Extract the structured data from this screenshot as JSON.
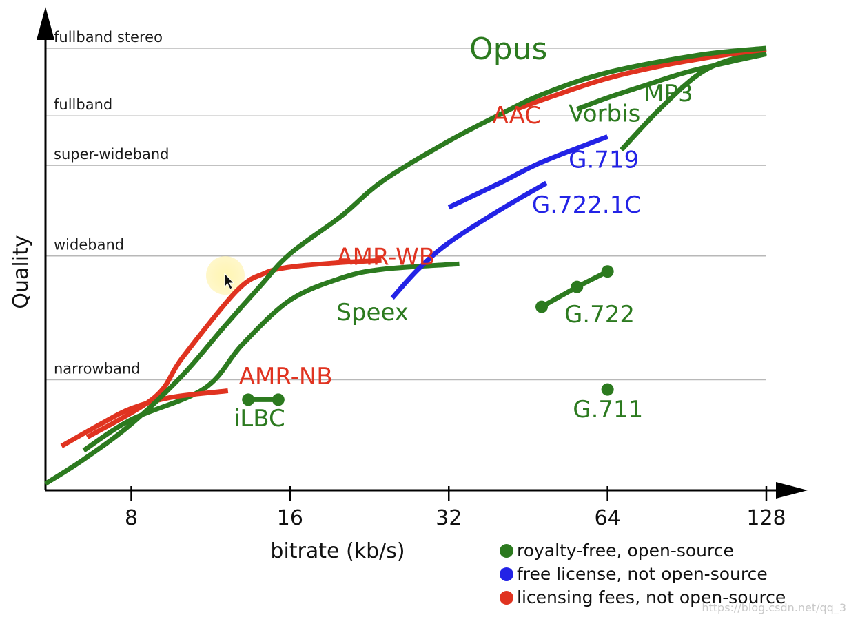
{
  "chart_data": {
    "type": "line",
    "xlabel": "bitrate (kb/s)",
    "ylabel": "Quality",
    "x_scale": "log2",
    "xlim": [
      5.5,
      128
    ],
    "x_ticks": [
      8,
      16,
      32,
      64,
      128
    ],
    "ylim": [
      0,
      1
    ],
    "quality_levels": [
      {
        "label": "narrowband",
        "y": 0.25
      },
      {
        "label": "wideband",
        "y": 0.53
      },
      {
        "label": "super-wideband",
        "y": 0.735
      },
      {
        "label": "fullband",
        "y": 0.847
      },
      {
        "label": "fullband stereo",
        "y": 1.0
      }
    ],
    "colors": {
      "royalty_free": "#2c7a1f",
      "free_license": "#2323e6",
      "licensing_fees": "#e03320"
    },
    "series": [
      {
        "name": "Opus",
        "license": "royalty_free",
        "points": [
          [
            5.5,
            0.015
          ],
          [
            6.5,
            0.07
          ],
          [
            8,
            0.15
          ],
          [
            10,
            0.26
          ],
          [
            12,
            0.37
          ],
          [
            14,
            0.46
          ],
          [
            16,
            0.535
          ],
          [
            20,
            0.62
          ],
          [
            24,
            0.7
          ],
          [
            32,
            0.79
          ],
          [
            40,
            0.85
          ],
          [
            48,
            0.895
          ],
          [
            64,
            0.945
          ],
          [
            96,
            0.985
          ],
          [
            128,
            1.0
          ]
        ]
      },
      {
        "name": "AAC",
        "license": "licensing_fees",
        "points": [
          [
            43,
            0.862
          ],
          [
            50,
            0.89
          ],
          [
            64,
            0.932
          ],
          [
            85,
            0.965
          ],
          [
            110,
            0.987
          ],
          [
            128,
            0.997
          ]
        ]
      },
      {
        "name": "Vorbis",
        "license": "royalty_free",
        "points": [
          [
            56,
            0.862
          ],
          [
            64,
            0.888
          ],
          [
            75,
            0.915
          ],
          [
            90,
            0.945
          ],
          [
            110,
            0.97
          ],
          [
            128,
            0.987
          ]
        ]
      },
      {
        "name": "MP3",
        "license": "royalty_free",
        "points": [
          [
            68,
            0.77
          ],
          [
            80,
            0.86
          ],
          [
            95,
            0.94
          ],
          [
            110,
            0.975
          ],
          [
            128,
            0.99
          ]
        ]
      },
      {
        "name": "G.719",
        "license": "free_license",
        "points": [
          [
            32,
            0.64
          ],
          [
            40,
            0.695
          ],
          [
            48,
            0.742
          ],
          [
            64,
            0.8
          ]
        ]
      },
      {
        "name": "G.722.1C",
        "license": "free_license",
        "points": [
          [
            25,
            0.435
          ],
          [
            28,
            0.5
          ],
          [
            32,
            0.56
          ],
          [
            40,
            0.634
          ],
          [
            49,
            0.695
          ]
        ]
      },
      {
        "name": "AMR-WB",
        "license": "licensing_fees",
        "points": [
          [
            6.6,
            0.12
          ],
          [
            8.85,
            0.21
          ],
          [
            10,
            0.3
          ],
          [
            12.65,
            0.45
          ],
          [
            14.25,
            0.49
          ],
          [
            16,
            0.505
          ],
          [
            19.85,
            0.515
          ],
          [
            23.85,
            0.52
          ]
        ]
      },
      {
        "name": "Speex",
        "license": "royalty_free",
        "points": [
          [
            6.5,
            0.09
          ],
          [
            8,
            0.16
          ],
          [
            11,
            0.23
          ],
          [
            13,
            0.33
          ],
          [
            16,
            0.43
          ],
          [
            20,
            0.48
          ],
          [
            24,
            0.5
          ],
          [
            33.5,
            0.512
          ]
        ]
      },
      {
        "name": "AMR-NB",
        "license": "licensing_fees",
        "points": [
          [
            5.9,
            0.1
          ],
          [
            7,
            0.15
          ],
          [
            8,
            0.185
          ],
          [
            9.5,
            0.21
          ],
          [
            12.2,
            0.225
          ]
        ]
      },
      {
        "name": "iLBC",
        "license": "royalty_free",
        "markers": true,
        "points": [
          [
            13.33,
            0.205
          ],
          [
            15.2,
            0.205
          ]
        ]
      },
      {
        "name": "G.722",
        "license": "royalty_free",
        "markers": true,
        "points": [
          [
            48,
            0.415
          ],
          [
            56,
            0.46
          ],
          [
            64,
            0.495
          ]
        ]
      },
      {
        "name": "G.711",
        "license": "royalty_free",
        "markers": true,
        "points": [
          [
            64,
            0.228
          ]
        ]
      }
    ],
    "legend": {
      "position": "bottom-right",
      "entries": [
        {
          "key": "royalty_free",
          "label": "royalty-free, open-source"
        },
        {
          "key": "free_license",
          "label": "free license, not open-source"
        },
        {
          "key": "licensing_fees",
          "label": "licensing fees, not open-source"
        }
      ]
    }
  },
  "watermark": "https://blog.csdn.net/qq_3"
}
